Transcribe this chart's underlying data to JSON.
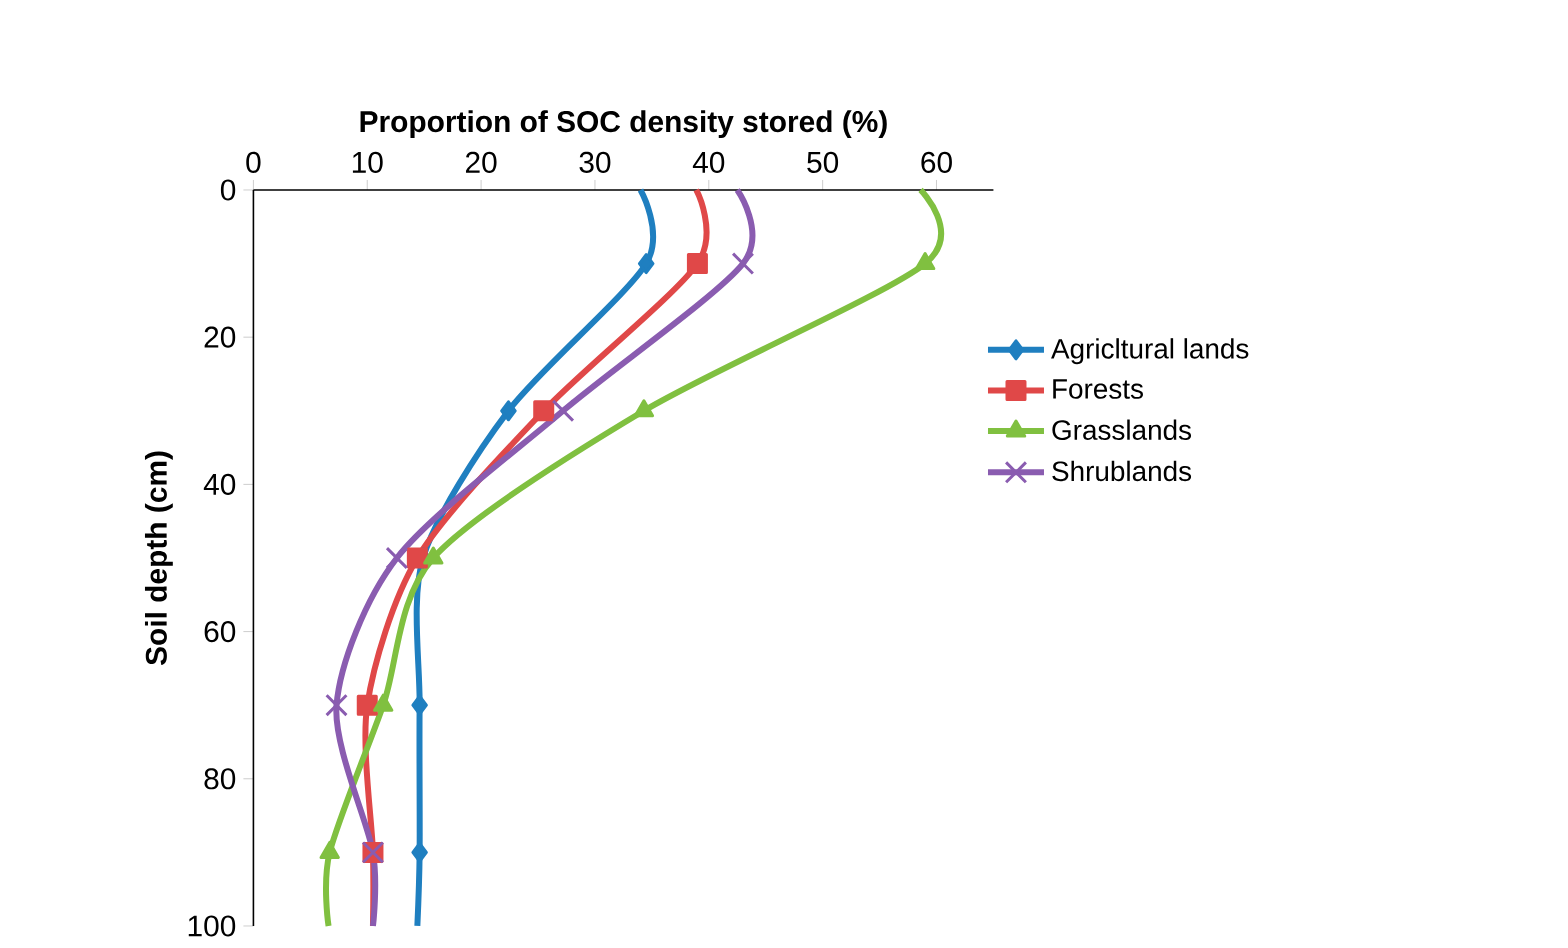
{
  "chart_data": {
    "type": "line",
    "xlabel": "Proportion of SOC density stored (%)",
    "ylabel": "Soil depth (cm)",
    "xlim": [
      0,
      65
    ],
    "xticks": [
      0,
      10,
      20,
      30,
      40,
      50,
      60
    ],
    "ylim": [
      100,
      0
    ],
    "yticks": [
      0,
      20,
      40,
      60,
      80,
      100
    ],
    "legend": "right",
    "series": [
      {
        "name": "Agricltural lands",
        "color": "#1f7fc0",
        "marker": "diamond",
        "x": [
          34,
          34.5,
          22.4,
          14.9,
          14.6,
          14.6,
          14.4
        ],
        "values": [
          0,
          10,
          30,
          50,
          70,
          90,
          100
        ]
      },
      {
        "name": "Forests",
        "color": "#e04848",
        "marker": "square",
        "x": [
          38.9,
          39,
          25.5,
          14.4,
          10,
          10.5,
          10.5
        ],
        "values": [
          0,
          10,
          30,
          50,
          70,
          90,
          100
        ]
      },
      {
        "name": "Grasslands",
        "color": "#80c040",
        "marker": "triangle",
        "x": [
          58.6,
          59,
          34.3,
          15.8,
          11.4,
          6.7,
          6.6
        ],
        "values": [
          0,
          10,
          30,
          50,
          70,
          90,
          100
        ]
      },
      {
        "name": "Shrublands",
        "color": "#8a5cb0",
        "marker": "cross",
        "x": [
          42.5,
          43,
          27.2,
          12.6,
          7.3,
          10.5,
          10.5
        ],
        "values": [
          0,
          10,
          30,
          50,
          70,
          90,
          100
        ]
      }
    ]
  }
}
